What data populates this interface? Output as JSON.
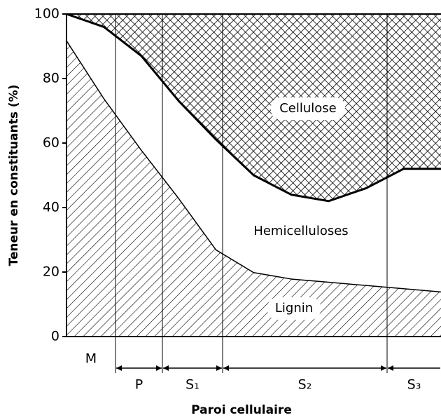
{
  "chart_data": {
    "type": "stacked_area",
    "ylabel": "Teneur en constituants (%)",
    "xlabel": "Paroi cellulaire",
    "ylim": [
      0,
      100
    ],
    "yticks": [
      0,
      20,
      40,
      60,
      80,
      100
    ],
    "categories": [
      null,
      null,
      null,
      null,
      null,
      null,
      null,
      null,
      null,
      null,
      null
    ],
    "series": [
      {
        "name": "Lignin",
        "color": "#000000",
        "pattern": "hatch",
        "values": [
          92,
          74,
          58,
          43,
          27,
          20,
          18,
          17,
          16,
          15,
          14
        ]
      },
      {
        "name": "Hemicelluloses",
        "color": "#ffffff",
        "pattern": "none",
        "values": [
          8,
          22,
          29,
          30,
          34,
          30,
          26,
          25,
          30,
          37,
          38
        ]
      },
      {
        "name": "Cellulose",
        "color": "#000000",
        "pattern": "crosshatch",
        "values": [
          0,
          4,
          13,
          27,
          39,
          50,
          56,
          58,
          54,
          48,
          48
        ]
      }
    ],
    "layers": [
      "M",
      "P",
      "S₁",
      "S₂",
      "S₃"
    ]
  }
}
